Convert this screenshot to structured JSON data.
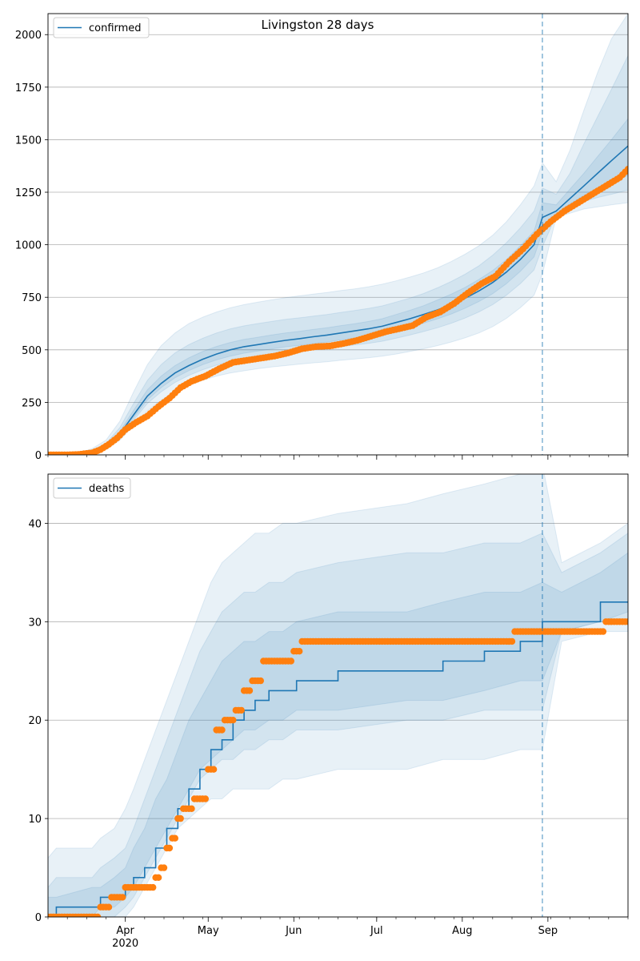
{
  "figure": {
    "title": "Livingston 28 days"
  },
  "colors": {
    "model_line": "#1f77b4",
    "band_fill": "#1f77b4",
    "observed": "#ff7f0e",
    "grid": "#b0b0b0",
    "vline": "#1f77b4"
  },
  "chart_data": [
    {
      "type": "line",
      "title": "Livingston 28 days",
      "legend": [
        "confirmed"
      ],
      "legend_position": "top-left",
      "grid": "y",
      "ylim": [
        0,
        2100
      ],
      "yticks": [
        0,
        250,
        500,
        750,
        1000,
        1250,
        1500,
        1750,
        2000
      ],
      "xlim": [
        "2020-03-04",
        "2020-09-30"
      ],
      "xtick_labels": [],
      "vline_date": "2020-08-30",
      "model": {
        "name": "confirmed",
        "dates": [
          "2020-03-04",
          "2020-03-10",
          "2020-03-15",
          "2020-03-20",
          "2020-03-25",
          "2020-03-30",
          "2020-04-04",
          "2020-04-09",
          "2020-04-14",
          "2020-04-19",
          "2020-04-24",
          "2020-04-29",
          "2020-05-04",
          "2020-05-09",
          "2020-05-14",
          "2020-05-19",
          "2020-05-24",
          "2020-05-29",
          "2020-06-03",
          "2020-06-08",
          "2020-06-13",
          "2020-06-18",
          "2020-06-23",
          "2020-06-28",
          "2020-07-03",
          "2020-07-08",
          "2020-07-13",
          "2020-07-18",
          "2020-07-23",
          "2020-07-28",
          "2020-08-02",
          "2020-08-07",
          "2020-08-12",
          "2020-08-17",
          "2020-08-22",
          "2020-08-27",
          "2020-08-30",
          "2020-09-04",
          "2020-09-09",
          "2020-09-14",
          "2020-09-19",
          "2020-09-24",
          "2020-09-30"
        ],
        "values": [
          0,
          0,
          2,
          15,
          40,
          100,
          190,
          280,
          340,
          390,
          425,
          455,
          480,
          500,
          515,
          525,
          535,
          545,
          553,
          562,
          570,
          580,
          590,
          600,
          612,
          630,
          648,
          668,
          690,
          715,
          745,
          780,
          820,
          870,
          930,
          1000,
          1130,
          1160,
          1220,
          1280,
          1340,
          1400,
          1470
        ]
      },
      "bands": [
        {
          "name": "",
          "lower": [
            0,
            0,
            0,
            8,
            25,
            70,
            140,
            210,
            260,
            300,
            330,
            355,
            375,
            390,
            400,
            410,
            418,
            425,
            432,
            438,
            443,
            450,
            456,
            462,
            470,
            480,
            492,
            505,
            520,
            537,
            557,
            580,
            610,
            650,
            700,
            760,
            860,
            1130,
            1150,
            1170,
            1180,
            1190,
            1200
          ],
          "upper": [
            0,
            2,
            8,
            30,
            70,
            160,
            300,
            430,
            520,
            580,
            625,
            655,
            680,
            700,
            715,
            727,
            738,
            748,
            757,
            765,
            773,
            782,
            790,
            800,
            812,
            828,
            846,
            866,
            890,
            920,
            955,
            995,
            1045,
            1110,
            1190,
            1280,
            1390,
            1300,
            1450,
            1640,
            1820,
            1980,
            2100
          ]
        },
        {
          "name": "",
          "lower": [
            0,
            0,
            1,
            11,
            32,
            85,
            165,
            245,
            300,
            345,
            378,
            405,
            427,
            445,
            457,
            467,
            476,
            485,
            492,
            500,
            506,
            515,
            523,
            531,
            541,
            555,
            570,
            587,
            605,
            626,
            651,
            680,
            715,
            760,
            815,
            880,
            990,
            1140,
            1175,
            1205,
            1225,
            1240,
            1260
          ],
          "upper": [
            0,
            1,
            5,
            22,
            55,
            130,
            245,
            355,
            430,
            485,
            525,
            555,
            580,
            600,
            614,
            625,
            635,
            645,
            652,
            660,
            668,
            678,
            687,
            697,
            709,
            727,
            746,
            768,
            795,
            825,
            860,
            900,
            950,
            1010,
            1080,
            1160,
            1270,
            1240,
            1340,
            1480,
            1610,
            1740,
            1900
          ]
        },
        {
          "name": "",
          "lower": [
            0,
            0,
            1,
            13,
            36,
            92,
            177,
            262,
            320,
            367,
            401,
            429,
            452,
            470,
            484,
            494,
            504,
            514,
            521,
            530,
            537,
            547,
            556,
            565,
            576,
            592,
            608,
            627,
            647,
            670,
            698,
            730,
            767,
            815,
            873,
            942,
            1060,
            1150,
            1195,
            1235,
            1265,
            1295,
            1330
          ],
          "upper": [
            0,
            1,
            3,
            18,
            46,
            112,
            212,
            310,
            375,
            425,
            462,
            492,
            516,
            535,
            550,
            560,
            571,
            580,
            588,
            597,
            605,
            615,
            624,
            635,
            648,
            668,
            688,
            710,
            737,
            765,
            797,
            835,
            877,
            930,
            995,
            1065,
            1200,
            1190,
            1265,
            1340,
            1420,
            1500,
            1600
          ]
        }
      ],
      "observed": {
        "name": "",
        "dates": [
          "2020-03-04",
          "2020-03-10",
          "2020-03-15",
          "2020-03-20",
          "2020-03-23",
          "2020-03-26",
          "2020-03-29",
          "2020-04-01",
          "2020-04-05",
          "2020-04-09",
          "2020-04-13",
          "2020-04-17",
          "2020-04-21",
          "2020-04-25",
          "2020-04-30",
          "2020-05-05",
          "2020-05-10",
          "2020-05-15",
          "2020-05-20",
          "2020-05-25",
          "2020-05-30",
          "2020-06-04",
          "2020-06-09",
          "2020-06-14",
          "2020-06-19",
          "2020-06-24",
          "2020-06-29",
          "2020-07-04",
          "2020-07-09",
          "2020-07-14",
          "2020-07-19",
          "2020-07-24",
          "2020-07-29",
          "2020-08-03",
          "2020-08-08",
          "2020-08-13",
          "2020-08-18",
          "2020-08-23",
          "2020-08-28",
          "2020-09-02",
          "2020-09-07",
          "2020-09-12",
          "2020-09-17",
          "2020-09-22",
          "2020-09-27",
          "2020-09-30"
        ],
        "values": [
          0,
          0,
          2,
          10,
          25,
          50,
          80,
          120,
          155,
          185,
          230,
          270,
          320,
          350,
          375,
          410,
          440,
          450,
          460,
          470,
          485,
          505,
          515,
          518,
          530,
          545,
          565,
          585,
          600,
          615,
          655,
          680,
          720,
          770,
          815,
          850,
          920,
          980,
          1050,
          1110,
          1160,
          1200,
          1240,
          1280,
          1320,
          1360
        ]
      }
    },
    {
      "type": "line",
      "title": "",
      "legend": [
        "deaths"
      ],
      "legend_position": "top-left",
      "grid": "y",
      "ylim": [
        0,
        45
      ],
      "yticks": [
        0,
        10,
        20,
        30,
        40
      ],
      "xlim": [
        "2020-03-04",
        "2020-09-30"
      ],
      "xtick_labels": [
        {
          "date": "2020-04-01",
          "label": "Apr"
        },
        {
          "date": "2020-05-01",
          "label": "May"
        },
        {
          "date": "2020-06-01",
          "label": "Jun"
        },
        {
          "date": "2020-07-01",
          "label": "Jul"
        },
        {
          "date": "2020-08-01",
          "label": "Aug"
        },
        {
          "date": "2020-09-01",
          "label": "Sep"
        }
      ],
      "xtick_sublabel": "2020",
      "vline_date": "2020-08-30",
      "model": {
        "name": "deaths",
        "dates": [
          "2020-03-04",
          "2020-03-07",
          "2020-03-20",
          "2020-03-23",
          "2020-03-28",
          "2020-04-01",
          "2020-04-04",
          "2020-04-08",
          "2020-04-12",
          "2020-04-16",
          "2020-04-20",
          "2020-04-24",
          "2020-04-28",
          "2020-05-02",
          "2020-05-06",
          "2020-05-10",
          "2020-05-14",
          "2020-05-18",
          "2020-05-23",
          "2020-05-28",
          "2020-06-02",
          "2020-06-17",
          "2020-07-12",
          "2020-07-25",
          "2020-08-09",
          "2020-08-22",
          "2020-08-30",
          "2020-09-06",
          "2020-09-20",
          "2020-09-30"
        ],
        "values": [
          0,
          1,
          1,
          2,
          2,
          3,
          4,
          5,
          7,
          9,
          11,
          13,
          15,
          17,
          18,
          20,
          21,
          22,
          23,
          23,
          24,
          25,
          25,
          26,
          27,
          28,
          30,
          30,
          32,
          32
        ]
      },
      "bands": [
        {
          "name": "",
          "lower": [
            0,
            0,
            0,
            0,
            0,
            0,
            1,
            3,
            5,
            7,
            9,
            10,
            11,
            12,
            12,
            13,
            13,
            13,
            13,
            14,
            14,
            15,
            15,
            16,
            16,
            17,
            17,
            28,
            29,
            29
          ],
          "upper": [
            6,
            7,
            7,
            8,
            9,
            11,
            13,
            16,
            19,
            22,
            25,
            28,
            31,
            34,
            36,
            37,
            38,
            39,
            39,
            40,
            40,
            41,
            42,
            43,
            44,
            45,
            46,
            36,
            38,
            40
          ]
        },
        {
          "name": "",
          "lower": [
            0,
            0,
            0,
            0,
            0,
            1,
            2,
            4,
            6,
            8,
            10,
            12,
            14,
            15,
            16,
            16,
            17,
            17,
            18,
            18,
            19,
            19,
            20,
            20,
            21,
            21,
            21,
            29,
            30,
            30
          ],
          "upper": [
            3,
            4,
            4,
            5,
            6,
            7,
            9,
            12,
            15,
            18,
            21,
            24,
            27,
            29,
            31,
            32,
            33,
            33,
            34,
            34,
            35,
            36,
            37,
            37,
            38,
            38,
            39,
            35,
            37,
            39
          ]
        },
        {
          "name": "",
          "lower": [
            0,
            0,
            0,
            1,
            1,
            2,
            3,
            5,
            7,
            9,
            11,
            13,
            15,
            16,
            17,
            18,
            19,
            19,
            20,
            20,
            21,
            21,
            22,
            22,
            23,
            24,
            24,
            29,
            30,
            31
          ],
          "upper": [
            2,
            2,
            3,
            3,
            4,
            5,
            7,
            9,
            12,
            14,
            17,
            20,
            22,
            24,
            26,
            27,
            28,
            28,
            29,
            29,
            30,
            31,
            31,
            32,
            33,
            33,
            34,
            33,
            35,
            37
          ]
        }
      ],
      "observed": {
        "name": "",
        "dates": [
          "2020-03-04",
          "2020-03-18",
          "2020-03-23",
          "2020-03-27",
          "2020-04-01",
          "2020-04-05",
          "2020-04-09",
          "2020-04-12",
          "2020-04-14",
          "2020-04-16",
          "2020-04-18",
          "2020-04-20",
          "2020-04-22",
          "2020-04-26",
          "2020-04-29",
          "2020-05-01",
          "2020-05-04",
          "2020-05-07",
          "2020-05-11",
          "2020-05-14",
          "2020-05-17",
          "2020-05-21",
          "2020-06-01",
          "2020-06-04",
          "2020-06-20",
          "2020-07-20",
          "2020-08-20",
          "2020-08-30",
          "2020-09-10",
          "2020-09-22",
          "2020-09-30"
        ],
        "values": [
          0,
          0,
          1,
          2,
          3,
          3,
          3,
          4,
          5,
          7,
          8,
          10,
          11,
          12,
          12,
          15,
          19,
          20,
          21,
          23,
          24,
          26,
          27,
          28,
          28,
          28,
          29,
          29,
          29,
          30,
          30
        ]
      }
    }
  ]
}
